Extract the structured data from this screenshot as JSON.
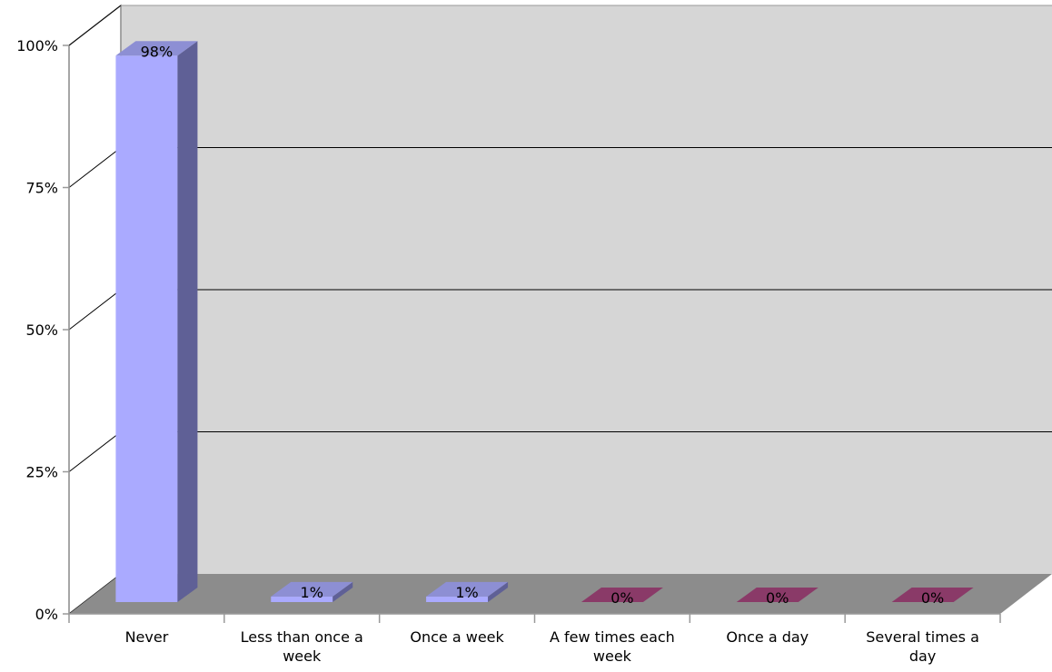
{
  "chart_data": {
    "type": "bar",
    "style": "3d",
    "title": "",
    "xlabel": "",
    "ylabel": "",
    "categories": [
      [
        "Never"
      ],
      [
        "Less than once a",
        "week"
      ],
      [
        "Once a week"
      ],
      [
        "A few times each",
        "week"
      ],
      [
        "Once a day"
      ],
      [
        "Several times a",
        "day"
      ]
    ],
    "values": [
      98,
      1,
      1,
      0,
      0,
      0
    ],
    "value_labels": [
      "98%",
      "1%",
      "1%",
      "0%",
      "0%",
      "0%"
    ],
    "ylim": [
      0,
      100
    ],
    "yticks": [
      0,
      25,
      50,
      75,
      100
    ],
    "ytick_labels": [
      "0%",
      "25%",
      "50%",
      "75%",
      "100%"
    ],
    "grid": true,
    "legend": "none",
    "colors": {
      "bar_front": "#aaaaff",
      "bar_side": "#5f6096",
      "bar_top": "#8d8fd4",
      "zero_top": "#8a3a68",
      "wall": "#d6d6d6",
      "floor": "#8c8c8c",
      "gridline": "#000000",
      "axis": "#999999"
    }
  }
}
